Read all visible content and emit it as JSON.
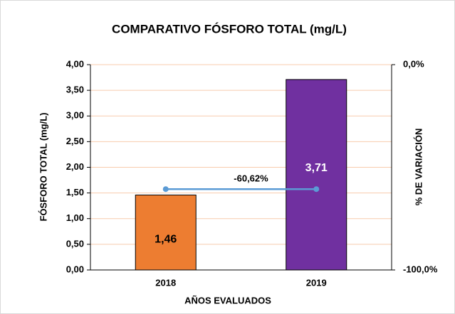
{
  "chart_data": {
    "type": "bar",
    "title": "COMPARATIVO FÓSFORO TOTAL (mg/L)",
    "x_label": "AÑOS EVALUADOS",
    "y_label": "FÓSFORO TOTAL  (mg/L)",
    "y2_label": "% DE VARIACIÓN",
    "categories": [
      "2018",
      "2019"
    ],
    "series": [
      {
        "type": "bar",
        "colors": [
          "#ED7D31",
          "#7030A0"
        ],
        "values": [
          1.46,
          3.71
        ],
        "value_labels": [
          "1,46",
          "3,71"
        ]
      },
      {
        "type": "line",
        "color": "#5B9BD5",
        "axis": "y2",
        "values": [
          -60.62,
          -60.62
        ]
      }
    ],
    "annotation": "-60,62%",
    "ylim": [
      0,
      4
    ],
    "yticks": [
      {
        "value": 0,
        "label": "0,00"
      },
      {
        "value": 0.5,
        "label": "0,50"
      },
      {
        "value": 1,
        "label": "1,00"
      },
      {
        "value": 1.5,
        "label": "1,50"
      },
      {
        "value": 2,
        "label": "2,00"
      },
      {
        "value": 2.5,
        "label": "2,50"
      },
      {
        "value": 3,
        "label": "3,00"
      },
      {
        "value": 3.5,
        "label": "3,50"
      },
      {
        "value": 4,
        "label": "4,00"
      }
    ],
    "y2lim": [
      -100,
      0
    ],
    "y2ticks": [
      {
        "value": 0,
        "label": "0,0%"
      },
      {
        "value": -100,
        "label": "-100,0%"
      }
    ],
    "grid": true,
    "grid_color": "#F8CBAD"
  }
}
